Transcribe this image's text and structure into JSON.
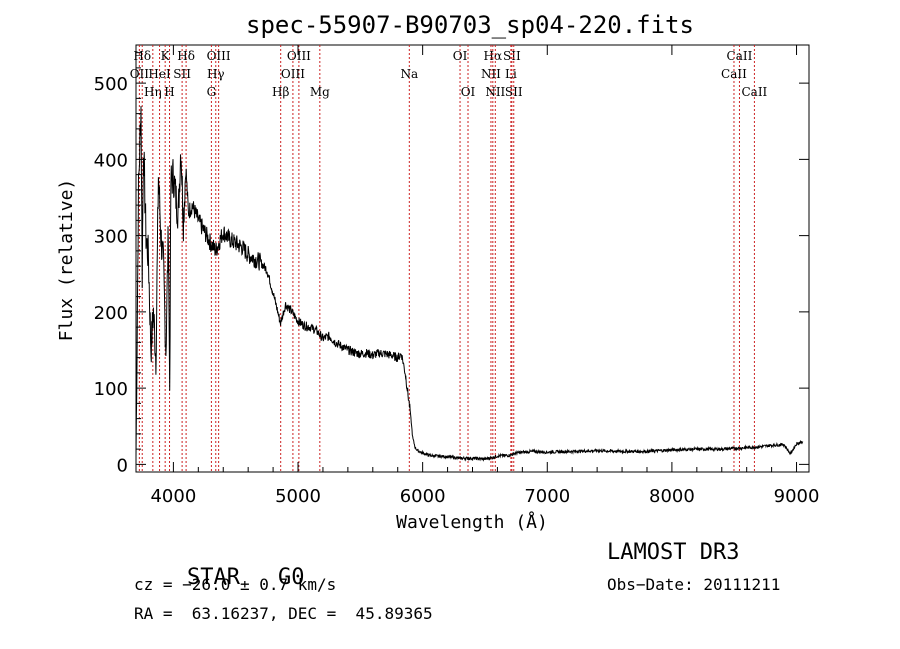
{
  "chart_data": {
    "type": "line",
    "title": "spec-55907-B90703_sp04-220.fits",
    "xlabel": "Wavelength (Å)",
    "ylabel": "Flux (relative)",
    "xlim": [
      3700,
      9100
    ],
    "ylim": [
      -10,
      550
    ],
    "xticks": [
      4000,
      5000,
      6000,
      7000,
      8000,
      9000
    ],
    "yticks": [
      0,
      100,
      200,
      300,
      400,
      500
    ],
    "series": [
      {
        "name": "flux",
        "points": [
          [
            3700,
            10
          ],
          [
            3720,
            360
          ],
          [
            3740,
            470
          ],
          [
            3750,
            250
          ],
          [
            3760,
            420
          ],
          [
            3780,
            300
          ],
          [
            3800,
            270
          ],
          [
            3820,
            150
          ],
          [
            3840,
            200
          ],
          [
            3860,
            140
          ],
          [
            3880,
            380
          ],
          [
            3900,
            300
          ],
          [
            3920,
            260
          ],
          [
            3940,
            150
          ],
          [
            3960,
            310
          ],
          [
            3970,
            100
          ],
          [
            3980,
            370
          ],
          [
            4000,
            380
          ],
          [
            4020,
            350
          ],
          [
            4040,
            330
          ],
          [
            4060,
            420
          ],
          [
            4080,
            320
          ],
          [
            4100,
            390
          ],
          [
            4120,
            330
          ],
          [
            4150,
            340
          ],
          [
            4200,
            320
          ],
          [
            4250,
            305
          ],
          [
            4300,
            290
          ],
          [
            4340,
            280
          ],
          [
            4400,
            305
          ],
          [
            4450,
            295
          ],
          [
            4500,
            290
          ],
          [
            4550,
            285
          ],
          [
            4600,
            275
          ],
          [
            4650,
            270
          ],
          [
            4700,
            265
          ],
          [
            4750,
            255
          ],
          [
            4800,
            225
          ],
          [
            4860,
            185
          ],
          [
            4900,
            210
          ],
          [
            4950,
            200
          ],
          [
            5000,
            188
          ],
          [
            5050,
            182
          ],
          [
            5100,
            180
          ],
          [
            5150,
            175
          ],
          [
            5200,
            165
          ],
          [
            5250,
            168
          ],
          [
            5300,
            160
          ],
          [
            5350,
            155
          ],
          [
            5400,
            150
          ],
          [
            5450,
            147
          ],
          [
            5500,
            145
          ],
          [
            5550,
            146
          ],
          [
            5600,
            143
          ],
          [
            5650,
            146
          ],
          [
            5700,
            145
          ],
          [
            5750,
            143
          ],
          [
            5800,
            140
          ],
          [
            5830,
            145
          ],
          [
            5860,
            120
          ],
          [
            5880,
            95
          ],
          [
            5900,
            70
          ],
          [
            5920,
            35
          ],
          [
            5940,
            22
          ],
          [
            5960,
            18
          ],
          [
            6000,
            15
          ],
          [
            6050,
            12
          ],
          [
            6100,
            11
          ],
          [
            6200,
            10
          ],
          [
            6300,
            8
          ],
          [
            6400,
            8
          ],
          [
            6500,
            7
          ],
          [
            6560,
            9
          ],
          [
            6600,
            11
          ],
          [
            6700,
            12
          ],
          [
            6750,
            15
          ],
          [
            6800,
            16
          ],
          [
            6900,
            17
          ],
          [
            7000,
            16
          ],
          [
            7200,
            17
          ],
          [
            7400,
            18
          ],
          [
            7600,
            17
          ],
          [
            7800,
            17
          ],
          [
            8000,
            19
          ],
          [
            8200,
            20
          ],
          [
            8400,
            20
          ],
          [
            8600,
            22
          ],
          [
            8700,
            23
          ],
          [
            8800,
            25
          ],
          [
            8900,
            26
          ],
          [
            8950,
            14
          ],
          [
            9000,
            27
          ],
          [
            9050,
            30
          ]
        ]
      }
    ],
    "lines": [
      {
        "label": "Hδ",
        "wave": 3750,
        "row": 1
      },
      {
        "label": "OII",
        "wave": 3727,
        "row": 2
      },
      {
        "label": "Hη",
        "wave": 3835,
        "row": 3
      },
      {
        "label": "K",
        "wave": 3934,
        "row": 1
      },
      {
        "label": "HeI",
        "wave": 3889,
        "row": 2
      },
      {
        "label": "H",
        "wave": 3969,
        "row": 3
      },
      {
        "label": "SII",
        "wave": 4070,
        "row": 2
      },
      {
        "label": "Hδ",
        "wave": 4102,
        "row": 1
      },
      {
        "label": "OIII",
        "wave": 4363,
        "row": 1
      },
      {
        "label": "Hγ",
        "wave": 4340,
        "row": 2
      },
      {
        "label": "G",
        "wave": 4305,
        "row": 3
      },
      {
        "label": "Hβ",
        "wave": 4861,
        "row": 3
      },
      {
        "label": "OIII",
        "wave": 5007,
        "row": 1
      },
      {
        "label": "OIII",
        "wave": 4959,
        "row": 2
      },
      {
        "label": "Mg",
        "wave": 5175,
        "row": 3
      },
      {
        "label": "Na",
        "wave": 5893,
        "row": 2
      },
      {
        "label": "OI",
        "wave": 6300,
        "row": 1
      },
      {
        "label": "OI",
        "wave": 6364,
        "row": 3
      },
      {
        "label": "Hα",
        "wave": 6563,
        "row": 1
      },
      {
        "label": "SII",
        "wave": 6716,
        "row": 1
      },
      {
        "label": "NII",
        "wave": 6548,
        "row": 2
      },
      {
        "label": "Li",
        "wave": 6708,
        "row": 2
      },
      {
        "label": "NII",
        "wave": 6583,
        "row": 3
      },
      {
        "label": "SII",
        "wave": 6731,
        "row": 3
      },
      {
        "label": "CaII",
        "wave": 8542,
        "row": 1
      },
      {
        "label": "CaII",
        "wave": 8498,
        "row": 2
      },
      {
        "label": "CaII",
        "wave": 8662,
        "row": 3
      }
    ]
  },
  "info": {
    "class": "STAR",
    "subclass": "G0",
    "survey": "LAMOST DR3",
    "cz": "cz = −26.0 ± 0.7 km/s",
    "obs_date": "Obs−Date: 20111211",
    "radec": "RA =  63.16237, DEC =  45.89365"
  }
}
